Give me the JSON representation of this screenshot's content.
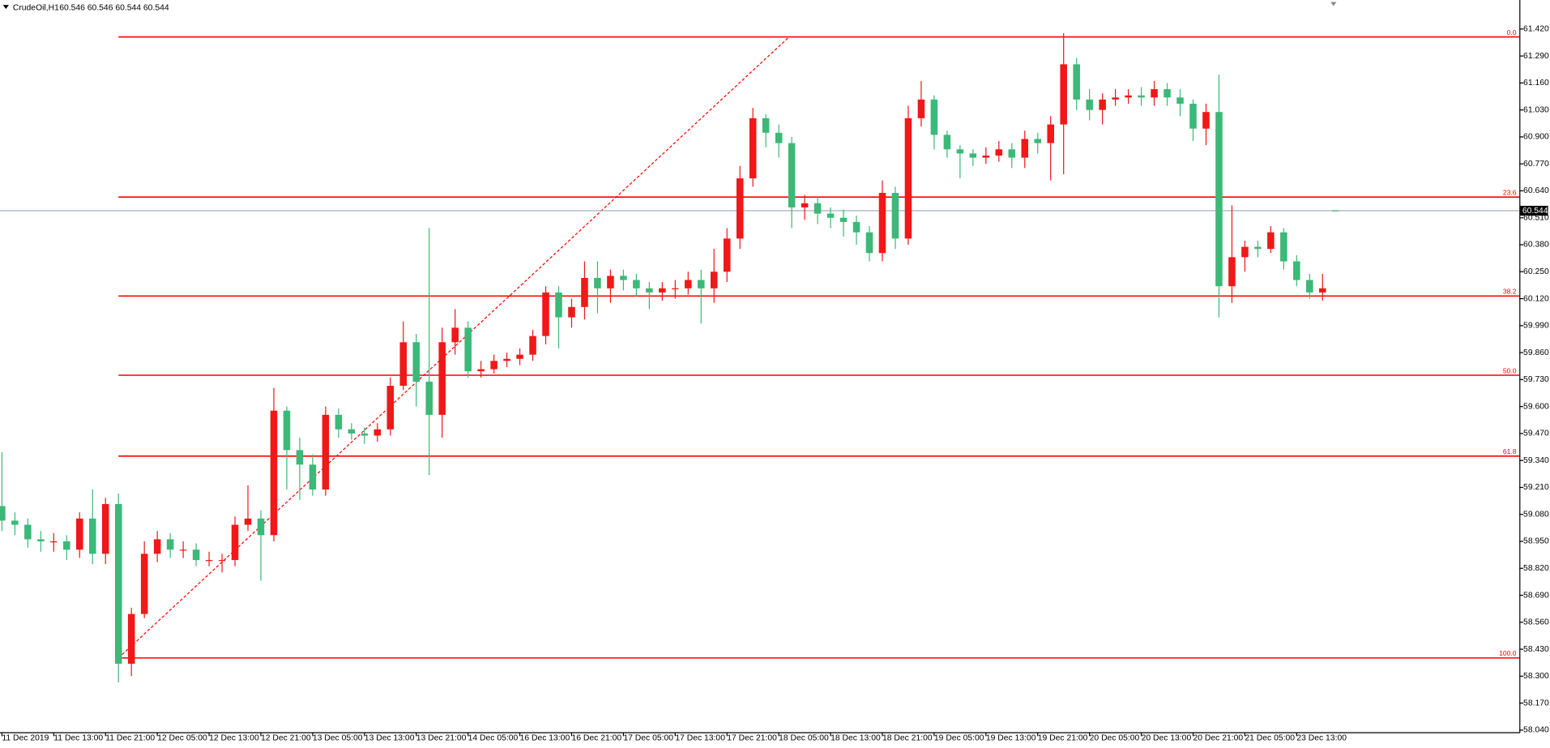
{
  "chart_data": {
    "type": "candlestick",
    "symbol": "CrudeOil,H1",
    "quote": "60.546 60.546 60.544 60.544",
    "up_color": "#f01818",
    "down_color": "#3cb878",
    "xlim": [
      -0.15,
      117.2
    ],
    "ylim": [
      58.03,
      61.56
    ],
    "xticks": [
      {
        "value": 0,
        "label": "11 Dec 2019"
      },
      {
        "value": 4,
        "label": "11 Dec 13:00"
      },
      {
        "value": 8,
        "label": "11 Dec 21:00"
      },
      {
        "value": 12,
        "label": "12 Dec 05:00"
      },
      {
        "value": 16,
        "label": "12 Dec 13:00"
      },
      {
        "value": 20,
        "label": "12 Dec 21:00"
      },
      {
        "value": 24,
        "label": "13 Dec 05:00"
      },
      {
        "value": 28,
        "label": "13 Dec 13:00"
      },
      {
        "value": 32,
        "label": "13 Dec 21:00"
      },
      {
        "value": 36,
        "label": "14 Dec 05:00"
      },
      {
        "value": 40,
        "label": "16 Dec 13:00"
      },
      {
        "value": 44,
        "label": "16 Dec 21:00"
      },
      {
        "value": 48,
        "label": "17 Dec 05:00"
      },
      {
        "value": 52,
        "label": "17 Dec 13:00"
      },
      {
        "value": 56,
        "label": "17 Dec 21:00"
      },
      {
        "value": 60,
        "label": "18 Dec 05:00"
      },
      {
        "value": 64,
        "label": "18 Dec 13:00"
      },
      {
        "value": 68,
        "label": "18 Dec 21:00"
      },
      {
        "value": 72,
        "label": "19 Dec 05:00"
      },
      {
        "value": 76,
        "label": "19 Dec 13:00"
      },
      {
        "value": 80,
        "label": "19 Dec 21:00"
      },
      {
        "value": 84,
        "label": "20 Dec 05:00"
      },
      {
        "value": 88,
        "label": "20 Dec 13:00"
      },
      {
        "value": 92,
        "label": "20 Dec 21:00"
      },
      {
        "value": 96,
        "label": "21 Dec 05:00"
      },
      {
        "value": 100,
        "label": "23 Dec 13:00"
      }
    ],
    "yticks": [
      {
        "value": 58.04,
        "label": "58.040"
      },
      {
        "value": 58.17,
        "label": "58.170"
      },
      {
        "value": 58.3,
        "label": "58.300"
      },
      {
        "value": 58.43,
        "label": "58.430"
      },
      {
        "value": 58.56,
        "label": "58.560"
      },
      {
        "value": 58.69,
        "label": "58.690"
      },
      {
        "value": 58.82,
        "label": "58.820"
      },
      {
        "value": 58.95,
        "label": "58.950"
      },
      {
        "value": 59.08,
        "label": "59.080"
      },
      {
        "value": 59.21,
        "label": "59.210"
      },
      {
        "value": 59.34,
        "label": "59.340"
      },
      {
        "value": 59.47,
        "label": "59.470"
      },
      {
        "value": 59.6,
        "label": "59.600"
      },
      {
        "value": 59.73,
        "label": "59.730"
      },
      {
        "value": 59.86,
        "label": "59.860"
      },
      {
        "value": 59.99,
        "label": "59.990"
      },
      {
        "value": 60.12,
        "label": "60.120"
      },
      {
        "value": 60.25,
        "label": "60.250"
      },
      {
        "value": 60.38,
        "label": "60.380"
      },
      {
        "value": 60.51,
        "label": "60.510"
      },
      {
        "value": 60.64,
        "label": "60.640"
      },
      {
        "value": 60.77,
        "label": "60.770"
      },
      {
        "value": 60.9,
        "label": "60.900"
      },
      {
        "value": 61.03,
        "label": "61.030"
      },
      {
        "value": 61.16,
        "label": "61.160"
      },
      {
        "value": 61.29,
        "label": "61.290"
      },
      {
        "value": 61.42,
        "label": "61.420"
      }
    ],
    "open": [
      59.12,
      59.05,
      59.03,
      58.96,
      58.95,
      58.95,
      58.91,
      59.06,
      58.89,
      59.13,
      58.36,
      58.6,
      58.89,
      58.96,
      58.91,
      58.91,
      58.86,
      58.86,
      58.86,
      59.03,
      59.06,
      58.98,
      59.58,
      59.39,
      59.32,
      59.2,
      59.56,
      59.49,
      59.47,
      59.46,
      59.49,
      59.7,
      59.91,
      59.72,
      59.56,
      59.91,
      59.98,
      59.77,
      59.78,
      59.82,
      59.83,
      59.85,
      59.94,
      60.15,
      60.03,
      60.08,
      60.22,
      60.17,
      60.23,
      60.21,
      60.17,
      60.15,
      60.17,
      60.17,
      60.21,
      60.17,
      60.25,
      60.41,
      60.7,
      60.99,
      60.92,
      60.87,
      60.56,
      60.58,
      60.53,
      60.51,
      60.49,
      60.44,
      60.34,
      60.63,
      60.41,
      60.99,
      61.08,
      60.91,
      60.84,
      60.82,
      60.8,
      60.81,
      60.84,
      60.8,
      60.89,
      60.87,
      60.96,
      61.25,
      61.08,
      61.03,
      61.08,
      61.09,
      61.1,
      61.09,
      61.13,
      61.09,
      61.06,
      60.94,
      61.02,
      60.18,
      60.32,
      60.37,
      60.36,
      60.44,
      60.3,
      60.21,
      60.15,
      60.546
    ],
    "high": [
      59.38,
      59.09,
      59.06,
      59.0,
      58.99,
      58.98,
      59.09,
      59.2,
      59.16,
      59.18,
      58.63,
      58.95,
      59.0,
      58.99,
      58.95,
      58.94,
      58.9,
      58.89,
      59.07,
      59.22,
      59.1,
      59.69,
      59.6,
      59.45,
      59.37,
      59.6,
      59.59,
      59.52,
      59.5,
      59.52,
      59.74,
      60.01,
      59.95,
      60.46,
      59.98,
      60.07,
      60.01,
      59.82,
      59.85,
      59.86,
      59.88,
      59.97,
      60.18,
      60.18,
      60.12,
      60.3,
      60.3,
      60.26,
      60.26,
      60.24,
      60.2,
      60.2,
      60.21,
      60.25,
      60.26,
      60.36,
      60.46,
      60.76,
      61.04,
      61.01,
      60.96,
      60.9,
      60.62,
      60.61,
      60.56,
      60.55,
      60.52,
      60.47,
      60.69,
      60.66,
      61.05,
      61.17,
      61.1,
      60.93,
      60.86,
      60.84,
      60.85,
      60.88,
      60.87,
      60.93,
      60.92,
      61.0,
      61.4,
      61.28,
      61.13,
      61.11,
      61.13,
      61.13,
      61.14,
      61.17,
      61.16,
      61.13,
      61.08,
      61.06,
      61.2,
      60.57,
      60.4,
      60.4,
      60.47,
      60.46,
      60.33,
      60.24,
      60.24,
      60.546
    ],
    "low": [
      59.0,
      58.98,
      58.92,
      58.9,
      58.9,
      58.86,
      58.87,
      58.84,
      58.84,
      58.27,
      58.3,
      58.58,
      58.85,
      58.87,
      58.87,
      58.83,
      58.83,
      58.8,
      58.83,
      59.0,
      58.76,
      58.95,
      59.2,
      59.15,
      59.17,
      59.17,
      59.45,
      59.44,
      59.42,
      59.43,
      59.46,
      59.68,
      59.6,
      59.27,
      59.45,
      59.85,
      59.74,
      59.74,
      59.76,
      59.79,
      59.8,
      59.82,
      59.9,
      59.88,
      59.98,
      60.02,
      60.05,
      60.1,
      60.16,
      60.13,
      60.07,
      60.11,
      60.12,
      60.14,
      60.0,
      60.1,
      60.2,
      60.36,
      60.66,
      60.85,
      60.8,
      60.46,
      60.5,
      60.48,
      60.46,
      60.42,
      60.38,
      60.3,
      60.3,
      60.36,
      60.38,
      60.95,
      60.84,
      60.8,
      60.7,
      60.76,
      60.77,
      60.78,
      60.75,
      60.75,
      60.82,
      60.69,
      60.72,
      61.03,
      60.98,
      60.96,
      61.05,
      61.06,
      61.05,
      61.05,
      61.05,
      61.0,
      60.88,
      60.86,
      60.03,
      60.1,
      60.25,
      60.32,
      60.34,
      60.26,
      60.18,
      60.12,
      60.11,
      60.544
    ],
    "close": [
      59.05,
      59.03,
      58.96,
      58.95,
      58.95,
      58.91,
      59.06,
      58.89,
      59.13,
      58.36,
      58.6,
      58.89,
      58.96,
      58.91,
      58.91,
      58.86,
      58.86,
      58.86,
      59.03,
      59.06,
      58.98,
      59.58,
      59.39,
      59.32,
      59.2,
      59.56,
      59.49,
      59.47,
      59.46,
      59.49,
      59.7,
      59.91,
      59.72,
      59.56,
      59.91,
      59.98,
      59.77,
      59.78,
      59.82,
      59.83,
      59.85,
      59.94,
      60.15,
      60.03,
      60.08,
      60.22,
      60.17,
      60.23,
      60.21,
      60.17,
      60.15,
      60.17,
      60.17,
      60.21,
      60.17,
      60.25,
      60.41,
      60.7,
      60.99,
      60.92,
      60.87,
      60.56,
      60.58,
      60.53,
      60.51,
      60.49,
      60.44,
      60.34,
      60.63,
      60.41,
      60.99,
      61.08,
      60.91,
      60.84,
      60.82,
      60.8,
      60.81,
      60.84,
      60.8,
      60.89,
      60.87,
      60.96,
      61.25,
      61.08,
      61.03,
      61.08,
      61.09,
      61.1,
      61.09,
      61.13,
      61.09,
      61.06,
      60.94,
      61.02,
      60.18,
      60.32,
      60.37,
      60.36,
      60.44,
      60.3,
      60.21,
      60.15,
      60.17,
      60.544
    ],
    "fibonacci": {
      "color": "#ff0000",
      "levels": [
        {
          "label": "0.0",
          "price": 61.382
        },
        {
          "label": "23.6",
          "price": 60.61
        },
        {
          "label": "38.2",
          "price": 60.133
        },
        {
          "label": "50.0",
          "price": 59.751
        },
        {
          "label": "61.8",
          "price": 59.361
        },
        {
          "label": "100.0",
          "price": 58.388
        }
      ],
      "trendline": {
        "x": [
          9,
          60.8
        ],
        "y": [
          58.388,
          61.382
        ]
      }
    },
    "current_price": 60.544,
    "current_price_color": "#9fb0bf"
  }
}
